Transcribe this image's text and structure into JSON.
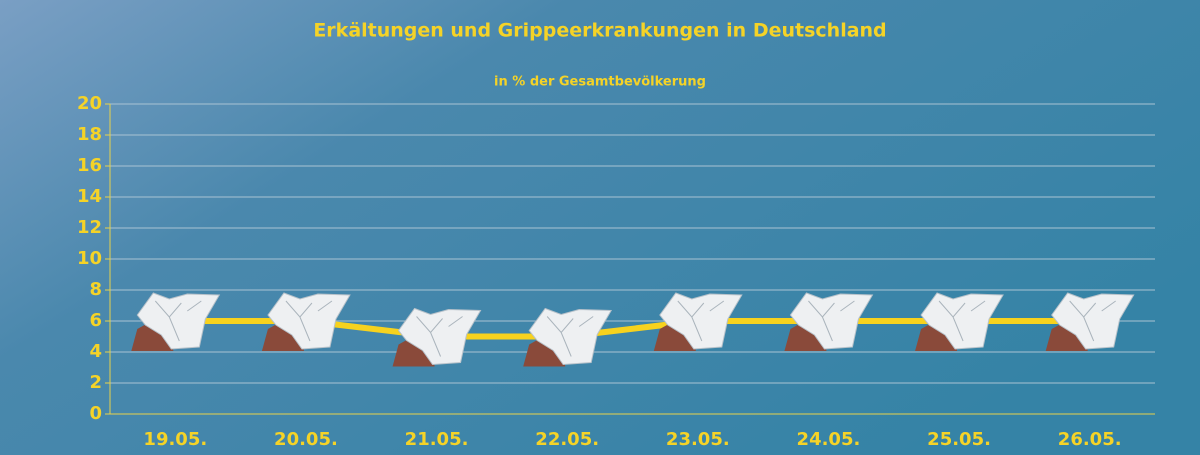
{
  "chart_data": {
    "type": "line",
    "title": "Erkältungen und Grippeerkrankungen in Deutschland",
    "subtitle": "in % der Gesamtbevölkerung",
    "categories": [
      "19.05.",
      "20.05.",
      "21.05.",
      "22.05.",
      "23.05.",
      "24.05.",
      "25.05.",
      "26.05."
    ],
    "values": [
      6,
      6,
      5,
      5,
      6,
      6,
      6,
      6
    ],
    "color": "#f7d21e",
    "ylim": [
      0,
      20
    ],
    "yticks": [
      0,
      2,
      4,
      6,
      8,
      10,
      12,
      14,
      16,
      18,
      20
    ],
    "grid": true
  }
}
